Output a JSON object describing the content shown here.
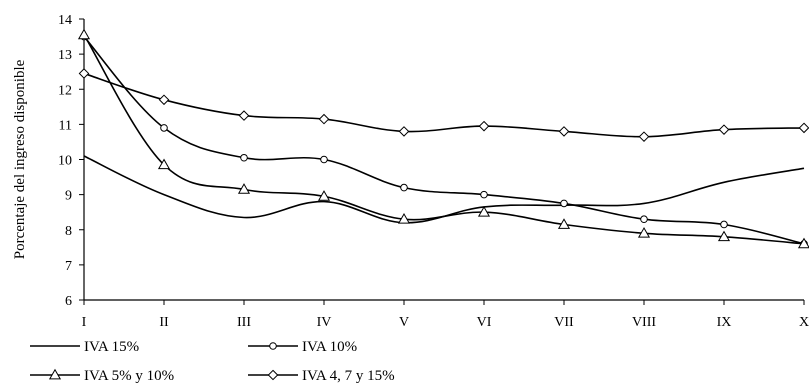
{
  "chart_data": {
    "type": "line",
    "title": "",
    "xlabel": "",
    "ylabel": "Porcentaje del ingreso disponible",
    "categories": [
      "I",
      "II",
      "III",
      "IV",
      "V",
      "VI",
      "VII",
      "VIII",
      "IX",
      "X"
    ],
    "ylim": [
      6,
      14
    ],
    "yticks": [
      6,
      7,
      8,
      9,
      10,
      11,
      12,
      13,
      14
    ],
    "grid": false,
    "legend_position": "bottom",
    "series": [
      {
        "name": "IVA 15%",
        "marker": "none",
        "values": [
          10.1,
          9.0,
          8.35,
          8.8,
          8.2,
          8.65,
          8.7,
          8.75,
          9.35,
          9.75
        ]
      },
      {
        "name": "IVA 10%",
        "marker": "circle",
        "values": [
          13.5,
          10.9,
          10.05,
          10.0,
          9.2,
          9.0,
          8.75,
          8.3,
          8.15,
          7.6
        ]
      },
      {
        "name": "IVA 5% y 10%",
        "marker": "triangle",
        "values": [
          13.55,
          9.85,
          9.15,
          8.95,
          8.3,
          8.5,
          8.15,
          7.9,
          7.8,
          7.6
        ]
      },
      {
        "name": "IVA 4, 7 y 15%",
        "marker": "diamond",
        "values": [
          12.45,
          11.7,
          11.25,
          11.15,
          10.8,
          10.95,
          10.8,
          10.65,
          10.85,
          10.9
        ]
      }
    ],
    "colors": {
      "line": "#000000",
      "marker_fill": "#ffffff"
    }
  }
}
